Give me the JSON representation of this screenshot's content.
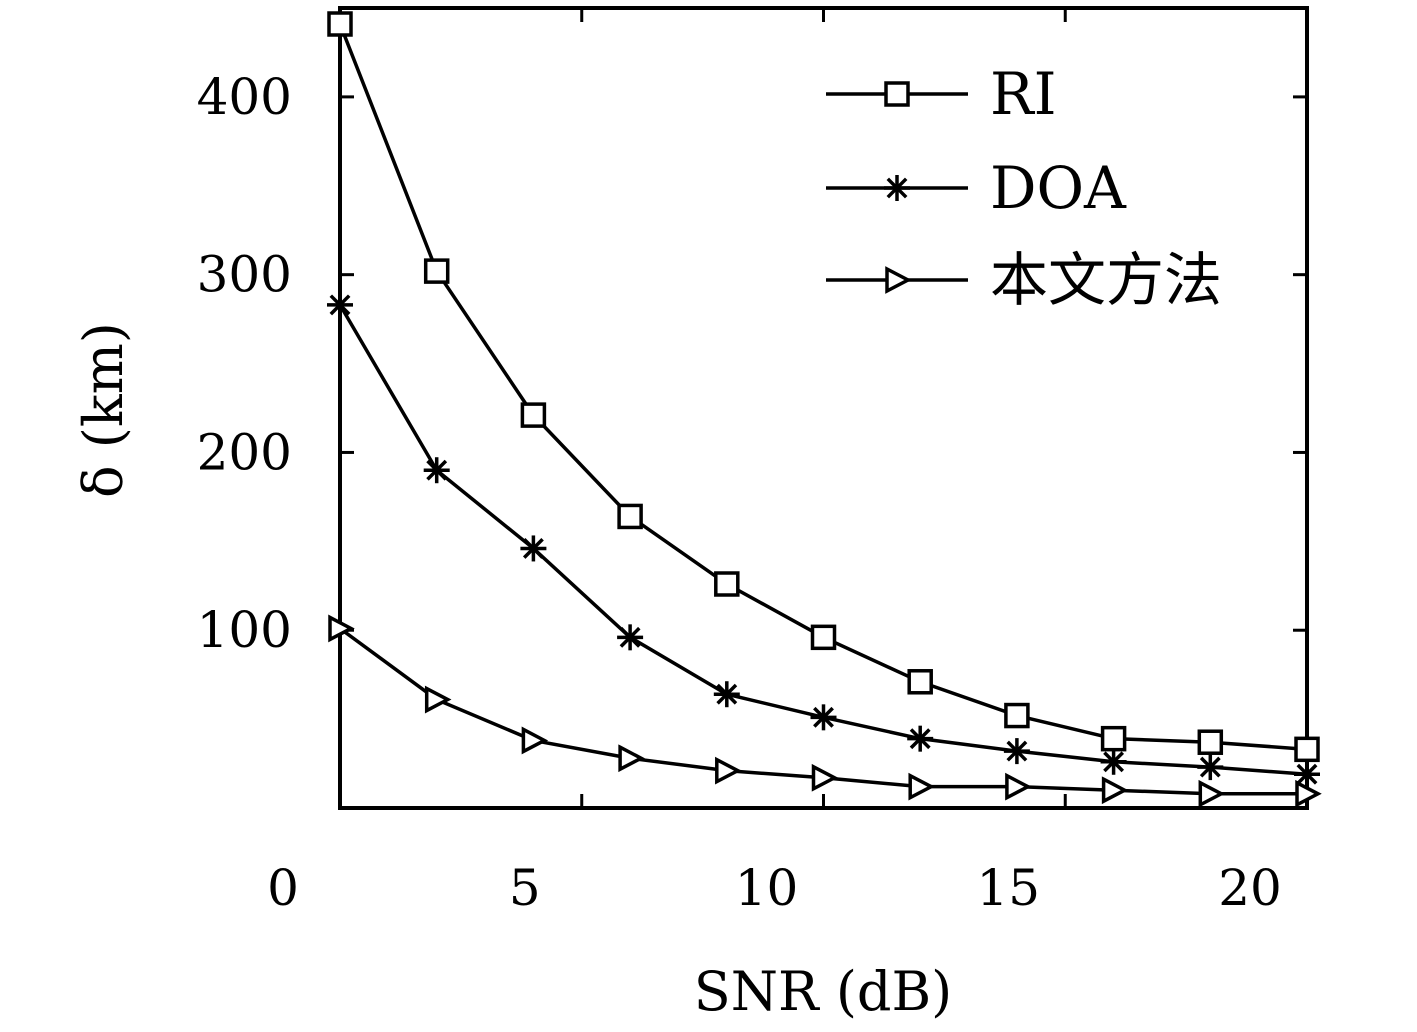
{
  "chart_data": {
    "type": "line",
    "xlabel": "SNR (dB)",
    "ylabel": "δ (km)",
    "xlim": [
      0,
      20
    ],
    "ylim": [
      0,
      450
    ],
    "x_ticks": [
      0,
      5,
      10,
      15,
      20
    ],
    "x_tick_labels": [
      "0",
      "5",
      "10",
      "15",
      "20"
    ],
    "y_ticks": [
      100,
      200,
      300,
      400
    ],
    "y_tick_labels": [
      "100",
      "200",
      "300",
      "400"
    ],
    "grid": false,
    "legend_position": "top-right",
    "x": [
      0,
      2,
      4,
      6,
      8,
      10,
      12,
      14,
      16,
      18,
      20
    ],
    "series": [
      {
        "name": "RI",
        "marker": "square",
        "values": [
          441,
          302,
          221,
          164,
          126,
          96,
          71,
          52,
          39,
          37,
          33
        ]
      },
      {
        "name": "DOA",
        "marker": "star",
        "values": [
          283,
          190,
          146,
          96,
          64,
          51,
          39,
          32,
          26,
          23,
          19
        ]
      },
      {
        "name": "本文方法",
        "marker": "triangle-right",
        "values": [
          101,
          61,
          38,
          28,
          21,
          17,
          12,
          12,
          10,
          8,
          8
        ]
      }
    ]
  }
}
